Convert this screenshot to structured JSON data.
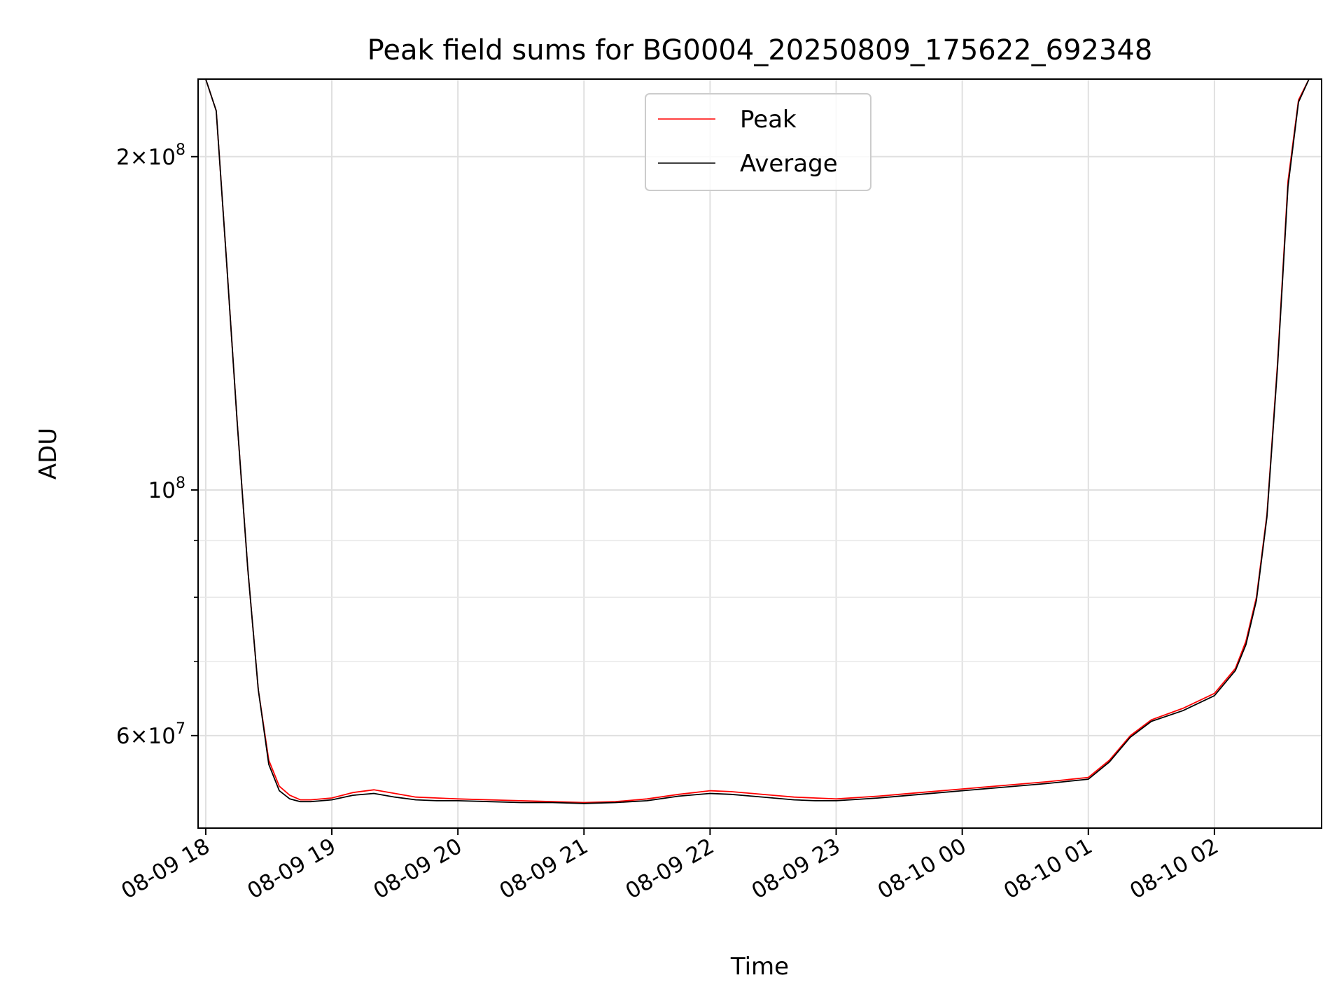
{
  "chart_data": {
    "type": "line",
    "title": "Peak field sums for BG0004_20250809_175622_692348",
    "xlabel": "Time",
    "ylabel": "ADU",
    "y_scale": "log",
    "ylim": [
      49500000,
      235000000
    ],
    "xlim": [
      "2025-08-09 17:56:22",
      "2025-08-10 02:51:00"
    ],
    "grid": true,
    "legend_position": "upper center",
    "x_ticks": [
      {
        "t": "2025-08-09 18:00",
        "label": "08-09 18"
      },
      {
        "t": "2025-08-09 19:00",
        "label": "08-09 19"
      },
      {
        "t": "2025-08-09 20:00",
        "label": "08-09 20"
      },
      {
        "t": "2025-08-09 21:00",
        "label": "08-09 21"
      },
      {
        "t": "2025-08-09 22:00",
        "label": "08-09 22"
      },
      {
        "t": "2025-08-09 23:00",
        "label": "08-09 23"
      },
      {
        "t": "2025-08-10 00:00",
        "label": "08-10 00"
      },
      {
        "t": "2025-08-10 01:00",
        "label": "08-10 01"
      },
      {
        "t": "2025-08-10 02:00",
        "label": "08-10 02"
      }
    ],
    "y_ticks": [
      {
        "value": 200000000,
        "mantissa": "2",
        "exp": "8"
      },
      {
        "value": 100000000,
        "mantissa": "",
        "exp": "8"
      },
      {
        "value": 60000000,
        "mantissa": "6",
        "exp": "7"
      }
    ],
    "series": [
      {
        "name": "Peak",
        "color": "#ff0000",
        "x": [
          "2025-08-09 17:56",
          "2025-08-09 18:00",
          "2025-08-09 18:05",
          "2025-08-09 18:10",
          "2025-08-09 18:15",
          "2025-08-09 18:20",
          "2025-08-09 18:25",
          "2025-08-09 18:30",
          "2025-08-09 18:35",
          "2025-08-09 18:40",
          "2025-08-09 18:45",
          "2025-08-09 18:50",
          "2025-08-09 19:00",
          "2025-08-09 19:10",
          "2025-08-09 19:20",
          "2025-08-09 19:30",
          "2025-08-09 19:40",
          "2025-08-09 19:50",
          "2025-08-09 20:00",
          "2025-08-09 20:15",
          "2025-08-09 20:30",
          "2025-08-09 20:45",
          "2025-08-09 21:00",
          "2025-08-09 21:15",
          "2025-08-09 21:30",
          "2025-08-09 21:45",
          "2025-08-09 22:00",
          "2025-08-09 22:10",
          "2025-08-09 22:20",
          "2025-08-09 22:30",
          "2025-08-09 22:40",
          "2025-08-09 22:50",
          "2025-08-09 23:00",
          "2025-08-09 23:20",
          "2025-08-09 23:40",
          "2025-08-10 00:00",
          "2025-08-10 00:20",
          "2025-08-10 00:40",
          "2025-08-10 01:00",
          "2025-08-10 01:10",
          "2025-08-10 01:20",
          "2025-08-10 01:30",
          "2025-08-10 01:45",
          "2025-08-10 02:00",
          "2025-08-10 02:10",
          "2025-08-10 02:15",
          "2025-08-10 02:20",
          "2025-08-10 02:25",
          "2025-08-10 02:30",
          "2025-08-10 02:35",
          "2025-08-10 02:40",
          "2025-08-10 02:45",
          "2025-08-10 02:51"
        ],
        "y": [
          235000000,
          235000000,
          220000000,
          160000000,
          115000000,
          85000000,
          66000000,
          57000000,
          54000000,
          53000000,
          52500000,
          52500000,
          52700000,
          53300000,
          53600000,
          53200000,
          52800000,
          52700000,
          52600000,
          52500000,
          52400000,
          52300000,
          52200000,
          52300000,
          52600000,
          53100000,
          53500000,
          53400000,
          53200000,
          53000000,
          52800000,
          52700000,
          52600000,
          52900000,
          53300000,
          53700000,
          54100000,
          54500000,
          55000000,
          57000000,
          60000000,
          62000000,
          63500000,
          65500000,
          69000000,
          73000000,
          80000000,
          95000000,
          130000000,
          190000000,
          225000000,
          235000000,
          235000000
        ]
      },
      {
        "name": "Average",
        "color": "#000000",
        "x": [
          "2025-08-09 17:56",
          "2025-08-09 18:00",
          "2025-08-09 18:05",
          "2025-08-09 18:10",
          "2025-08-09 18:15",
          "2025-08-09 18:20",
          "2025-08-09 18:25",
          "2025-08-09 18:30",
          "2025-08-09 18:35",
          "2025-08-09 18:40",
          "2025-08-09 18:45",
          "2025-08-09 18:50",
          "2025-08-09 19:00",
          "2025-08-09 19:10",
          "2025-08-09 19:20",
          "2025-08-09 19:30",
          "2025-08-09 19:40",
          "2025-08-09 19:50",
          "2025-08-09 20:00",
          "2025-08-09 20:15",
          "2025-08-09 20:30",
          "2025-08-09 20:45",
          "2025-08-09 21:00",
          "2025-08-09 21:15",
          "2025-08-09 21:30",
          "2025-08-09 21:45",
          "2025-08-09 22:00",
          "2025-08-09 22:10",
          "2025-08-09 22:20",
          "2025-08-09 22:30",
          "2025-08-09 22:40",
          "2025-08-09 22:50",
          "2025-08-09 23:00",
          "2025-08-09 23:20",
          "2025-08-09 23:40",
          "2025-08-10 00:00",
          "2025-08-10 00:20",
          "2025-08-10 00:40",
          "2025-08-10 01:00",
          "2025-08-10 01:10",
          "2025-08-10 01:20",
          "2025-08-10 01:30",
          "2025-08-10 01:45",
          "2025-08-10 02:00",
          "2025-08-10 02:10",
          "2025-08-10 02:15",
          "2025-08-10 02:20",
          "2025-08-10 02:25",
          "2025-08-10 02:30",
          "2025-08-10 02:35",
          "2025-08-10 02:40",
          "2025-08-10 02:45",
          "2025-08-10 02:51"
        ],
        "y": [
          235000000,
          235000000,
          220000000,
          160000000,
          115000000,
          85000000,
          66000000,
          56500000,
          53500000,
          52600000,
          52300000,
          52300000,
          52500000,
          53000000,
          53200000,
          52800000,
          52500000,
          52400000,
          52400000,
          52300000,
          52200000,
          52200000,
          52100000,
          52200000,
          52400000,
          52900000,
          53200000,
          53100000,
          52900000,
          52700000,
          52500000,
          52400000,
          52400000,
          52700000,
          53100000,
          53500000,
          53900000,
          54300000,
          54800000,
          56800000,
          59800000,
          61800000,
          63200000,
          65200000,
          68700000,
          72500000,
          79500000,
          94500000,
          129000000,
          188000000,
          224000000,
          235000000,
          235000000
        ]
      }
    ]
  }
}
